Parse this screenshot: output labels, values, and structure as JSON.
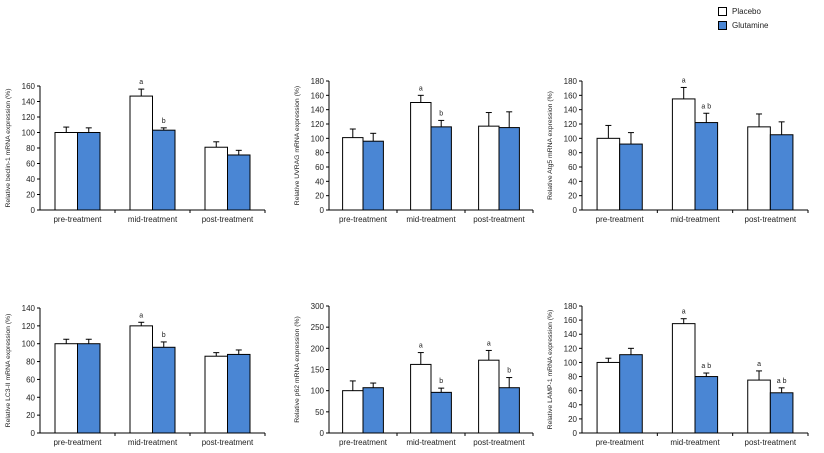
{
  "legend": {
    "placebo": {
      "label": "Placebo",
      "color": "#ffffff"
    },
    "glutamine": {
      "label": "Glutamine",
      "color": "#4a86d4"
    }
  },
  "chart_data": [
    {
      "type": "bar",
      "title": "",
      "categories": [
        "pre-treatment",
        "mid-treatment",
        "post-treatment"
      ],
      "ylabel": "Relative beclin-1 mRNA expression (%)",
      "xlabel": "",
      "ylim": [
        0,
        160
      ],
      "yticks": [
        0,
        20,
        40,
        60,
        80,
        100,
        120,
        140,
        160
      ],
      "series": [
        {
          "name": "Placebo",
          "values": [
            100,
            147,
            81
          ],
          "errors": [
            7,
            9,
            7
          ],
          "labels": [
            "",
            "a",
            ""
          ]
        },
        {
          "name": "Glutamine",
          "values": [
            100,
            103,
            71
          ],
          "errors": [
            6,
            3,
            6
          ],
          "labels": [
            "",
            "b",
            ""
          ]
        }
      ]
    },
    {
      "type": "bar",
      "title": "",
      "categories": [
        "pre-treatment",
        "mid-treatment",
        "post-treatment"
      ],
      "ylabel": "Relative UVRAG mRNA expression (%)",
      "xlabel": "",
      "ylim": [
        0,
        180
      ],
      "yticks": [
        0,
        20,
        40,
        60,
        80,
        100,
        120,
        140,
        160,
        180
      ],
      "series": [
        {
          "name": "Placebo",
          "values": [
            101,
            150,
            117
          ],
          "errors": [
            12,
            10,
            19
          ],
          "labels": [
            "",
            "a",
            ""
          ]
        },
        {
          "name": "Glutamine",
          "values": [
            96,
            116,
            115
          ],
          "errors": [
            11,
            9,
            22
          ],
          "labels": [
            "",
            "b",
            ""
          ]
        }
      ]
    },
    {
      "type": "bar",
      "title": "",
      "categories": [
        "pre-treatment",
        "mid-treatment",
        "post-treatment"
      ],
      "ylabel": "Relative Atg5 mRNA expression (%)",
      "xlabel": "",
      "ylim": [
        0,
        180
      ],
      "yticks": [
        0,
        20,
        40,
        60,
        80,
        100,
        120,
        140,
        160,
        180
      ],
      "series": [
        {
          "name": "Placebo",
          "values": [
            100,
            155,
            116
          ],
          "errors": [
            18,
            16,
            18
          ],
          "labels": [
            "",
            "a",
            ""
          ]
        },
        {
          "name": "Glutamine",
          "values": [
            92,
            122,
            105
          ],
          "errors": [
            16,
            13,
            18
          ],
          "labels": [
            "",
            "a b",
            ""
          ]
        }
      ]
    },
    {
      "type": "bar",
      "title": "",
      "categories": [
        "pre-treatment",
        "mid-treatment",
        "post-treatment"
      ],
      "ylabel": "Relative LC3-II mRNA expression (%)",
      "xlabel": "",
      "ylim": [
        0,
        140
      ],
      "yticks": [
        0,
        20,
        40,
        60,
        80,
        100,
        120,
        140
      ],
      "series": [
        {
          "name": "Placebo",
          "values": [
            100,
            120,
            86
          ],
          "errors": [
            5,
            4,
            4
          ],
          "labels": [
            "",
            "a",
            ""
          ]
        },
        {
          "name": "Glutamine",
          "values": [
            100,
            96,
            88
          ],
          "errors": [
            5,
            6,
            5
          ],
          "labels": [
            "",
            "b",
            ""
          ]
        }
      ]
    },
    {
      "type": "bar",
      "title": "",
      "categories": [
        "pre-treatment",
        "mid-treatment",
        "post-treatment"
      ],
      "ylabel": "Relative p62 mRNA expression (%)",
      "xlabel": "",
      "ylim": [
        0,
        300
      ],
      "yticks": [
        0,
        50,
        100,
        150,
        200,
        250,
        300
      ],
      "series": [
        {
          "name": "Placebo",
          "values": [
            100,
            162,
            172
          ],
          "errors": [
            23,
            28,
            23
          ],
          "labels": [
            "",
            "a",
            "a"
          ]
        },
        {
          "name": "Glutamine",
          "values": [
            107,
            96,
            107
          ],
          "errors": [
            11,
            10,
            24
          ],
          "labels": [
            "",
            "b",
            "b"
          ]
        }
      ]
    },
    {
      "type": "bar",
      "title": "",
      "categories": [
        "pre-treatment",
        "mid-treatment",
        "post-treatment"
      ],
      "ylabel": "Relative LAMP-1 mRNA expression (%)",
      "xlabel": "",
      "ylim": [
        0,
        180
      ],
      "yticks": [
        0,
        20,
        40,
        60,
        80,
        100,
        120,
        140,
        160,
        180
      ],
      "series": [
        {
          "name": "Placebo",
          "values": [
            100,
            155,
            75
          ],
          "errors": [
            6,
            7,
            13
          ],
          "labels": [
            "",
            "a",
            "a"
          ]
        },
        {
          "name": "Glutamine",
          "values": [
            111,
            80,
            57
          ],
          "errors": [
            9,
            5,
            7
          ],
          "labels": [
            "",
            "a b",
            "a b"
          ]
        }
      ]
    }
  ]
}
